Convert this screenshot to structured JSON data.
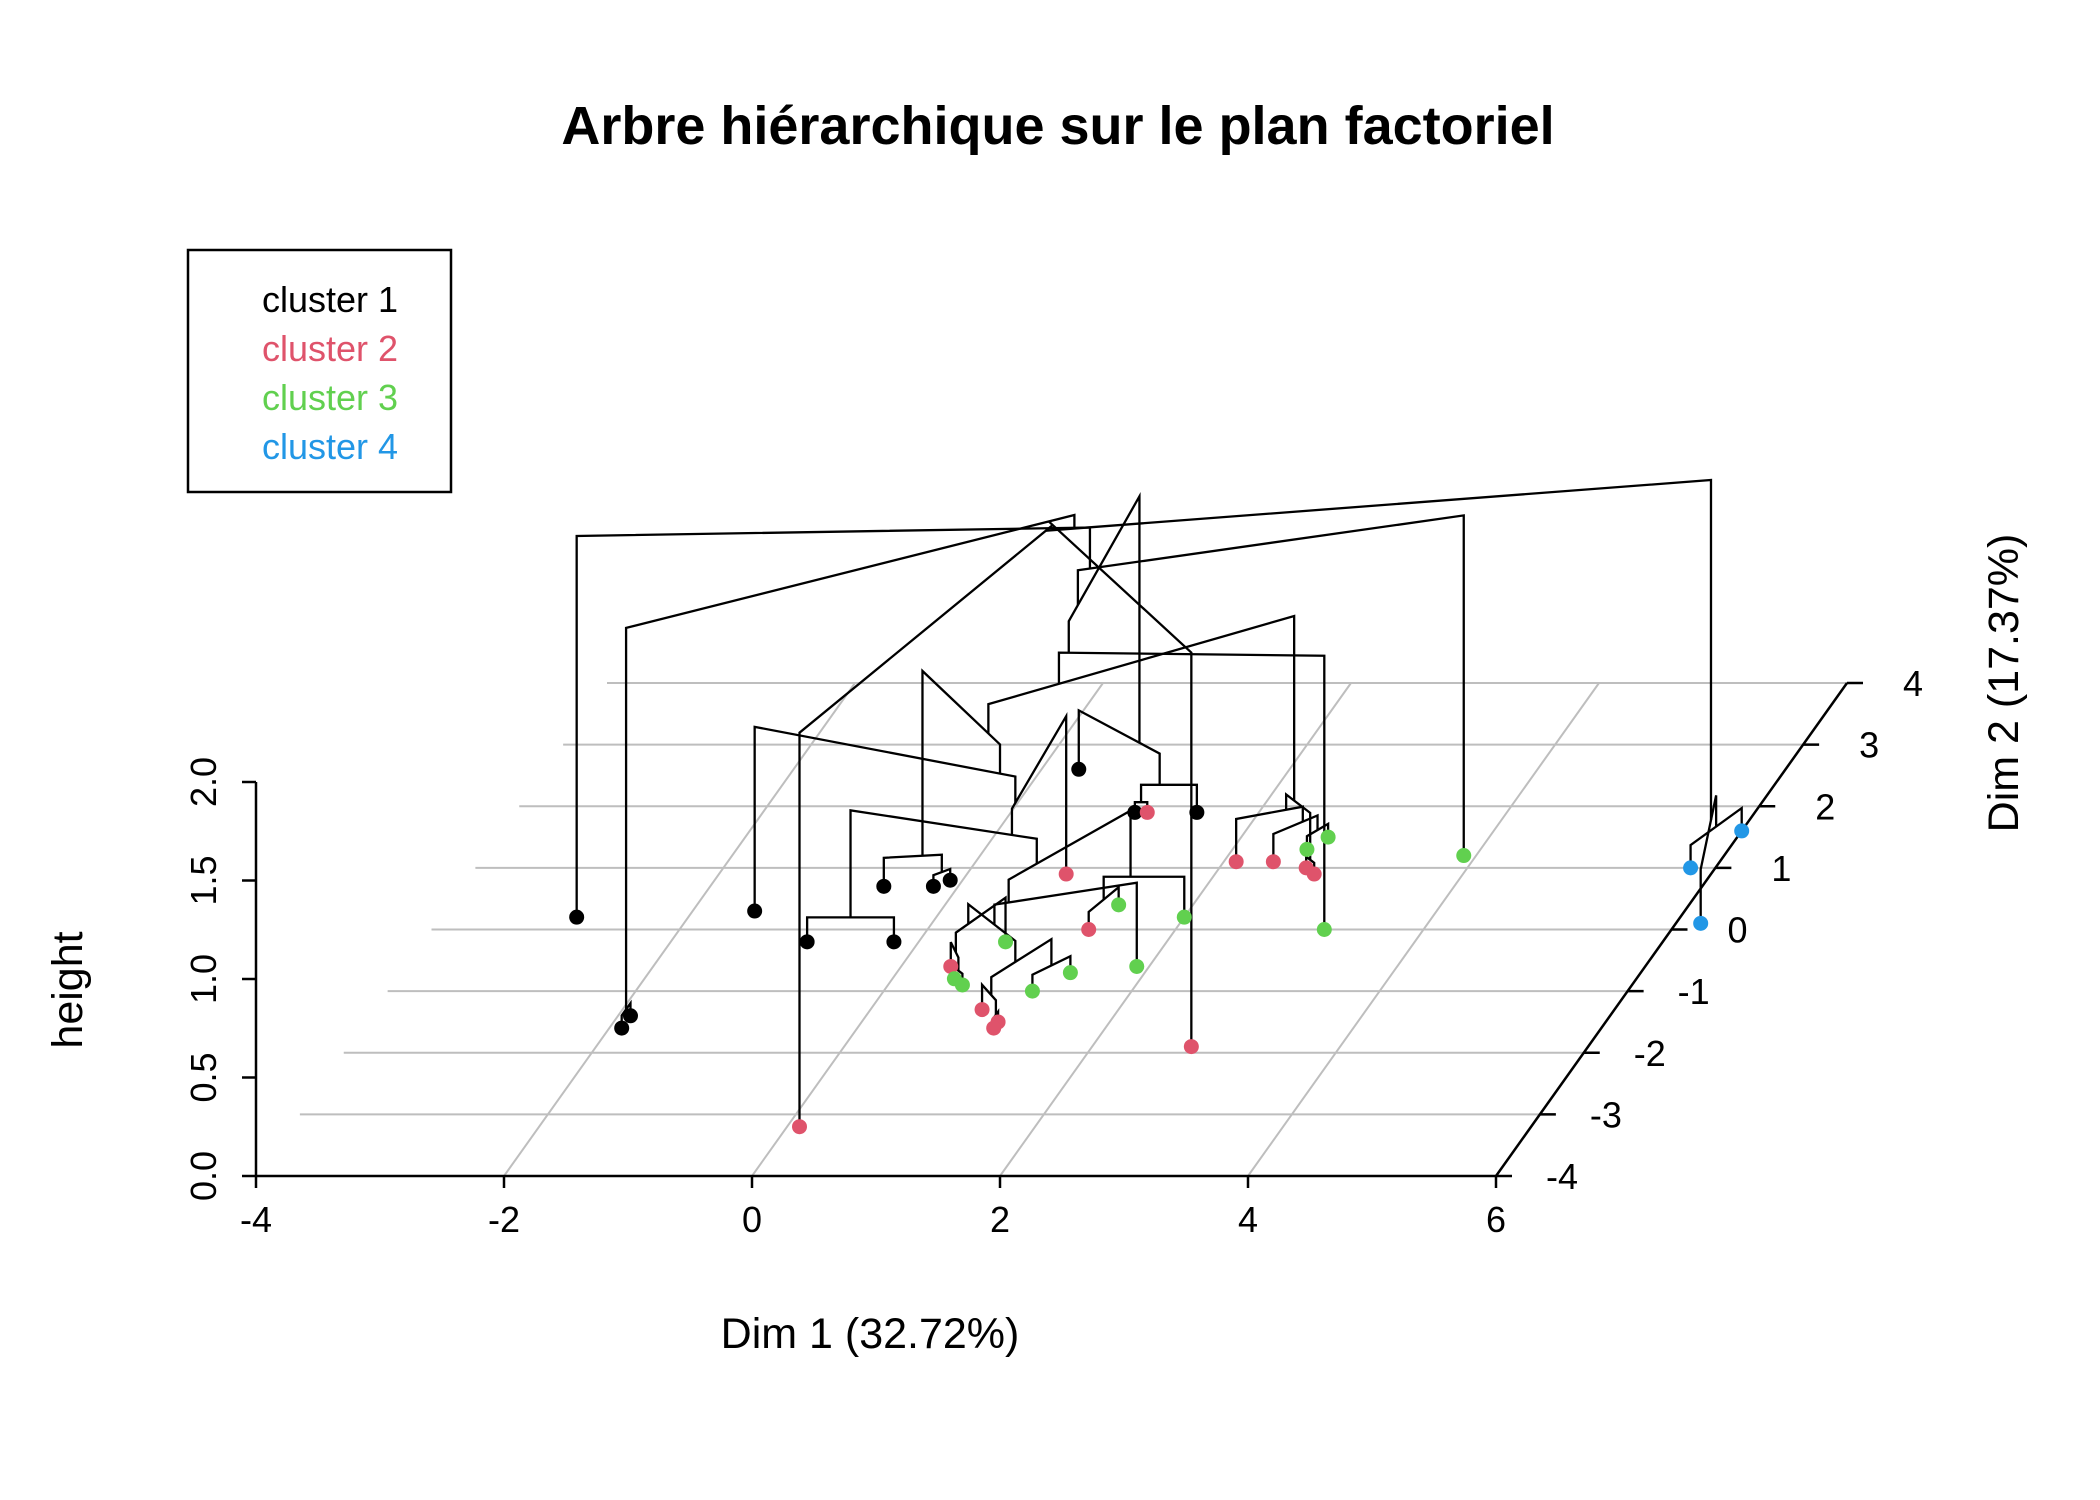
{
  "chart_data": {
    "type": "scatter",
    "title": "Arbre hiérarchique sur le plan factoriel",
    "xlabel": "Dim 1 (32.72%)",
    "ylabel": "Dim 2 (17.37%)",
    "zlabel": "height",
    "x_ticks": [
      "-4",
      "-2",
      "0",
      "2",
      "4",
      "6"
    ],
    "y_ticks": [
      "-4",
      "-3",
      "-2",
      "-1",
      "0",
      "1",
      "2",
      "3",
      "4"
    ],
    "z_ticks": [
      "0.0",
      "0.5",
      "1.0",
      "1.5",
      "2.0"
    ],
    "xlim": [
      -4,
      6
    ],
    "ylim": [
      -4,
      4
    ],
    "zlim": [
      0,
      2
    ],
    "grid": true,
    "legend_position": "top-left",
    "legend": [
      {
        "label": "cluster 1",
        "color": "#000000"
      },
      {
        "label": "cluster 2",
        "color": "#df536b"
      },
      {
        "label": "cluster 3",
        "color": "#61d04f"
      },
      {
        "label": "cluster 4",
        "color": "#2297e6"
      }
    ],
    "series": [
      {
        "name": "cluster 1",
        "color": "#000000",
        "points": [
          {
            "x": -2.9,
            "y": 0.2
          },
          {
            "x": -1.5,
            "y": 0.3
          },
          {
            "x": -0.6,
            "y": 0.7
          },
          {
            "x": -0.9,
            "y": -0.2
          },
          {
            "x": -0.2,
            "y": -0.2
          },
          {
            "x": -0.2,
            "y": 0.7
          },
          {
            "x": -0.1,
            "y": 0.8
          },
          {
            "x": -1.9,
            "y": -1.6
          },
          {
            "x": -1.9,
            "y": -1.4
          },
          {
            "x": 0.3,
            "y": 2.6
          },
          {
            "x": 1.0,
            "y": 1.9
          },
          {
            "x": 1.5,
            "y": 1.9
          }
        ]
      },
      {
        "name": "cluster 2",
        "color": "#df536b",
        "points": [
          {
            "x": 1.1,
            "y": 1.9
          },
          {
            "x": 0.8,
            "y": 0.9
          },
          {
            "x": 1.3,
            "y": 0.0
          },
          {
            "x": 0.4,
            "y": -0.6
          },
          {
            "x": 0.9,
            "y": -1.3
          },
          {
            "x": 1.1,
            "y": -1.5
          },
          {
            "x": 1.1,
            "y": -1.6
          },
          {
            "x": 2.8,
            "y": -1.9
          },
          {
            "x": 0.1,
            "y": -3.2
          },
          {
            "x": 2.1,
            "y": 1.1
          },
          {
            "x": 2.4,
            "y": 1.1
          },
          {
            "x": 2.7,
            "y": 1.0
          },
          {
            "x": 2.8,
            "y": 0.9
          }
        ]
      },
      {
        "name": "cluster 3",
        "color": "#61d04f",
        "points": [
          {
            "x": 1.4,
            "y": 0.4
          },
          {
            "x": 2.0,
            "y": 0.2
          },
          {
            "x": 0.7,
            "y": -0.2
          },
          {
            "x": 1.4,
            "y": -0.7
          },
          {
            "x": 1.9,
            "y": -0.6
          },
          {
            "x": 0.5,
            "y": -0.8
          },
          {
            "x": 0.6,
            "y": -0.9
          },
          {
            "x": 1.2,
            "y": -1.0
          },
          {
            "x": 3.2,
            "y": 0.0
          },
          {
            "x": 2.6,
            "y": 1.3
          },
          {
            "x": 2.7,
            "y": 1.5
          },
          {
            "x": 3.9,
            "y": 1.2
          }
        ]
      },
      {
        "name": "cluster 4",
        "color": "#2297e6",
        "points": [
          {
            "x": 5.8,
            "y": 1.0
          },
          {
            "x": 6.0,
            "y": 1.6
          },
          {
            "x": 6.2,
            "y": 0.1
          }
        ]
      }
    ]
  }
}
